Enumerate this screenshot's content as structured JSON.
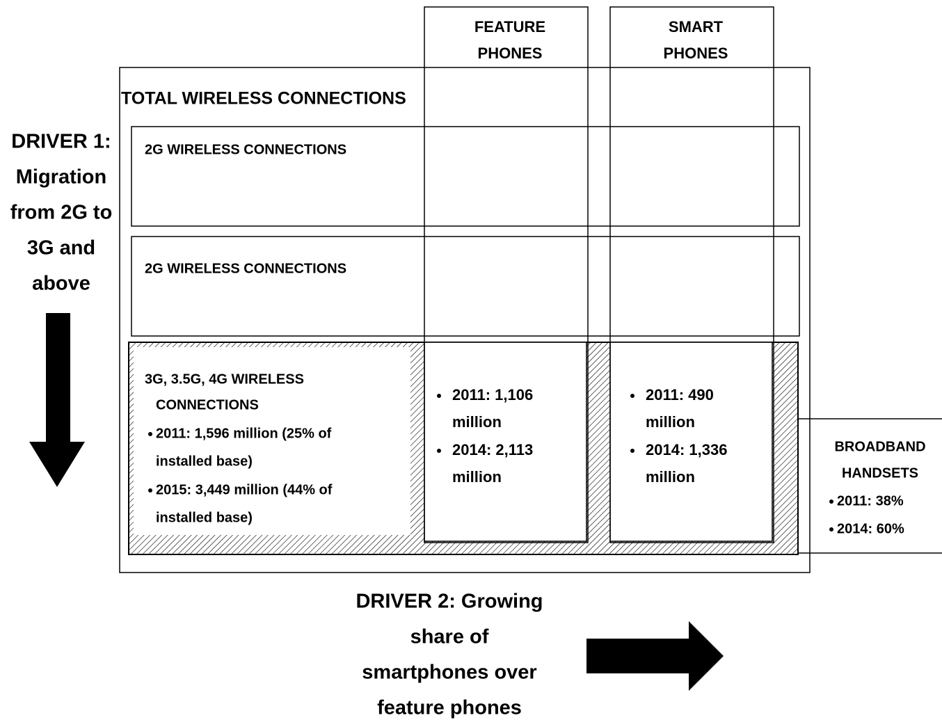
{
  "columns": [
    {
      "label": [
        "FEATURE",
        "PHONES"
      ]
    },
    {
      "label": [
        "SMART",
        "PHONES"
      ]
    }
  ],
  "total": {
    "label": "TOTAL WIRELESS CONNECTIONS"
  },
  "rows": [
    {
      "label": "2G WIRELESS CONNECTIONS"
    },
    {
      "label": "2G WIRELESS CONNECTIONS"
    }
  ],
  "next_gen": {
    "label": [
      "3G, 3.5G, 4G WIRELESS",
      "CONNECTIONS"
    ],
    "bullets": [
      [
        "2011: 1,596 million (25% of",
        "installed base)"
      ],
      [
        "2015: 3,449 million (44% of",
        "installed base)"
      ]
    ]
  },
  "feature_phones": {
    "bullets": [
      [
        "2011: 1,106",
        "million"
      ],
      [
        "2014: 2,113",
        "million"
      ]
    ]
  },
  "smart_phones": {
    "bullets": [
      [
        "2011: 490",
        "million"
      ],
      [
        "2014: 1,336",
        "million"
      ]
    ]
  },
  "broadband_handsets": {
    "label": [
      "BROADBAND",
      "HANDSETS"
    ],
    "bullets": [
      "2011: 38%",
      "2014: 60%"
    ]
  },
  "driver1": {
    "label": [
      "DRIVER 1:",
      "Migration",
      "from 2G to",
      "3G and",
      "above"
    ]
  },
  "driver2": {
    "label": [
      "DRIVER 2: Growing",
      "share of",
      "smartphones over",
      "feature phones"
    ]
  }
}
